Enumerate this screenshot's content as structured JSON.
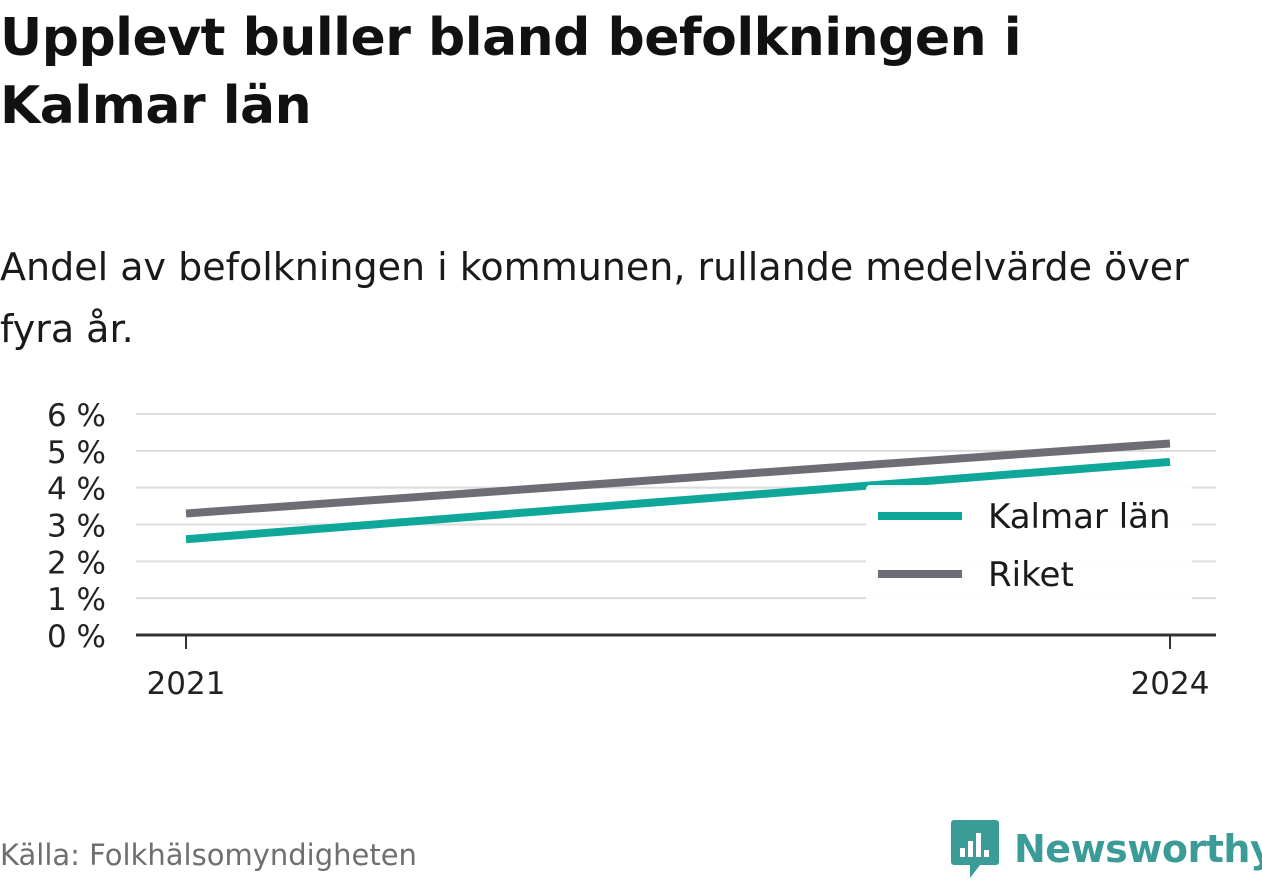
{
  "title": "Upplevt buller bland befolkningen i Kalmar län",
  "subtitle": "Andel av befolkningen i kommunen, rullande medelvärde över fyra år.",
  "source": "Källa: Folkhälsomyndigheten",
  "brand": "Newsworthy",
  "colors": {
    "kalmar": "#0fa79a",
    "riket": "#6e6d75",
    "grid": "#dcdcdc",
    "axis": "#333333",
    "brand": "#3b9c97"
  },
  "chart_data": {
    "type": "line",
    "x": [
      2021,
      2024
    ],
    "x_tick_labels": [
      "2021",
      "2024"
    ],
    "y_ticks": [
      0,
      1,
      2,
      3,
      4,
      5,
      6
    ],
    "y_tick_labels": [
      "0 %",
      "1 %",
      "2 %",
      "3 %",
      "4 %",
      "5 %",
      "6 %"
    ],
    "ylim": [
      0,
      6
    ],
    "grid": true,
    "legend_position": "bottom-right",
    "series": [
      {
        "name": "Kalmar län",
        "values": [
          2.6,
          4.7
        ],
        "color": "#0fa79a"
      },
      {
        "name": "Riket",
        "values": [
          3.3,
          5.2
        ],
        "color": "#6e6d75"
      }
    ]
  }
}
